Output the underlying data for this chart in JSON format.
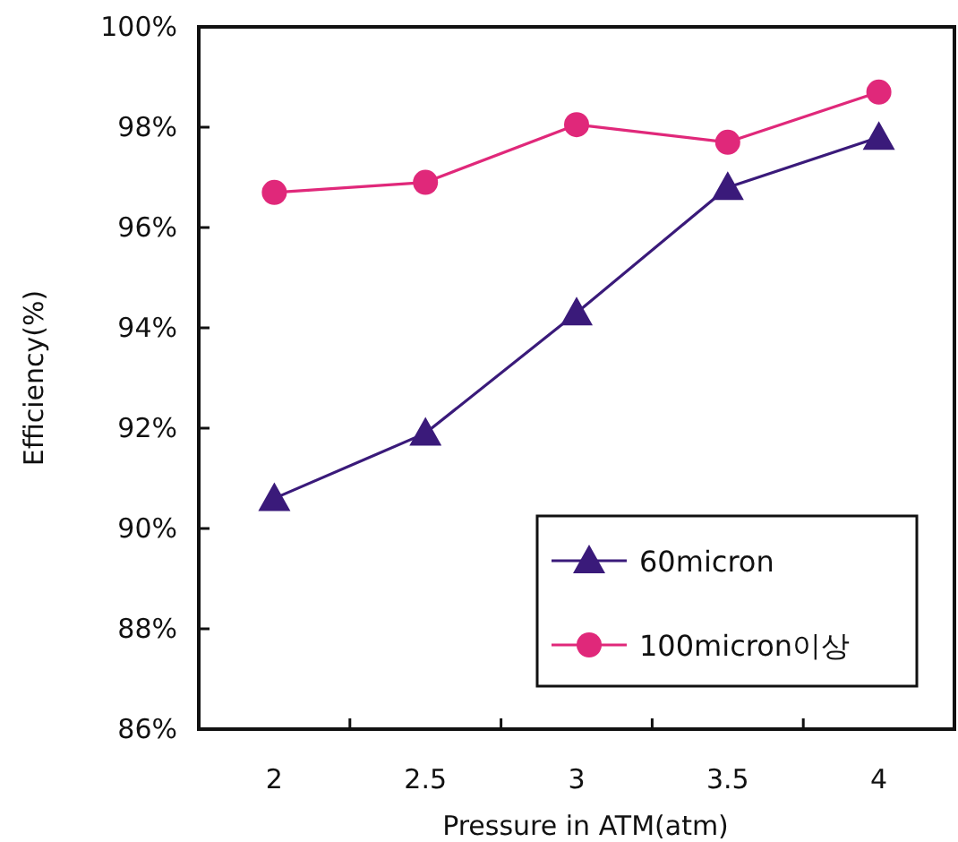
{
  "chart_data": {
    "type": "line",
    "xlabel": "Pressure in ATM(atm)",
    "ylabel": "Efficiency(%)",
    "categories": [
      "2",
      "2.5",
      "3",
      "3.5",
      "4"
    ],
    "series": [
      {
        "name": "60micron",
        "color": "#3a1a7a",
        "marker": "triangle",
        "values": [
          90.6,
          91.9,
          94.3,
          96.8,
          97.8
        ]
      },
      {
        "name": "100micron이상",
        "color": "#e0287a",
        "marker": "circle",
        "values": [
          96.7,
          96.9,
          98.05,
          97.7,
          98.7
        ]
      }
    ],
    "ylim": [
      86,
      100
    ],
    "yticks": [
      {
        "value": 86,
        "label": "86%"
      },
      {
        "value": 88,
        "label": "88%"
      },
      {
        "value": 90,
        "label": "90%"
      },
      {
        "value": 92,
        "label": "92%"
      },
      {
        "value": 94,
        "label": "94%"
      },
      {
        "value": 96,
        "label": "96%"
      },
      {
        "value": 98,
        "label": "98%"
      },
      {
        "value": 100,
        "label": "100%"
      }
    ],
    "legend": "bottom right",
    "grid": false
  }
}
